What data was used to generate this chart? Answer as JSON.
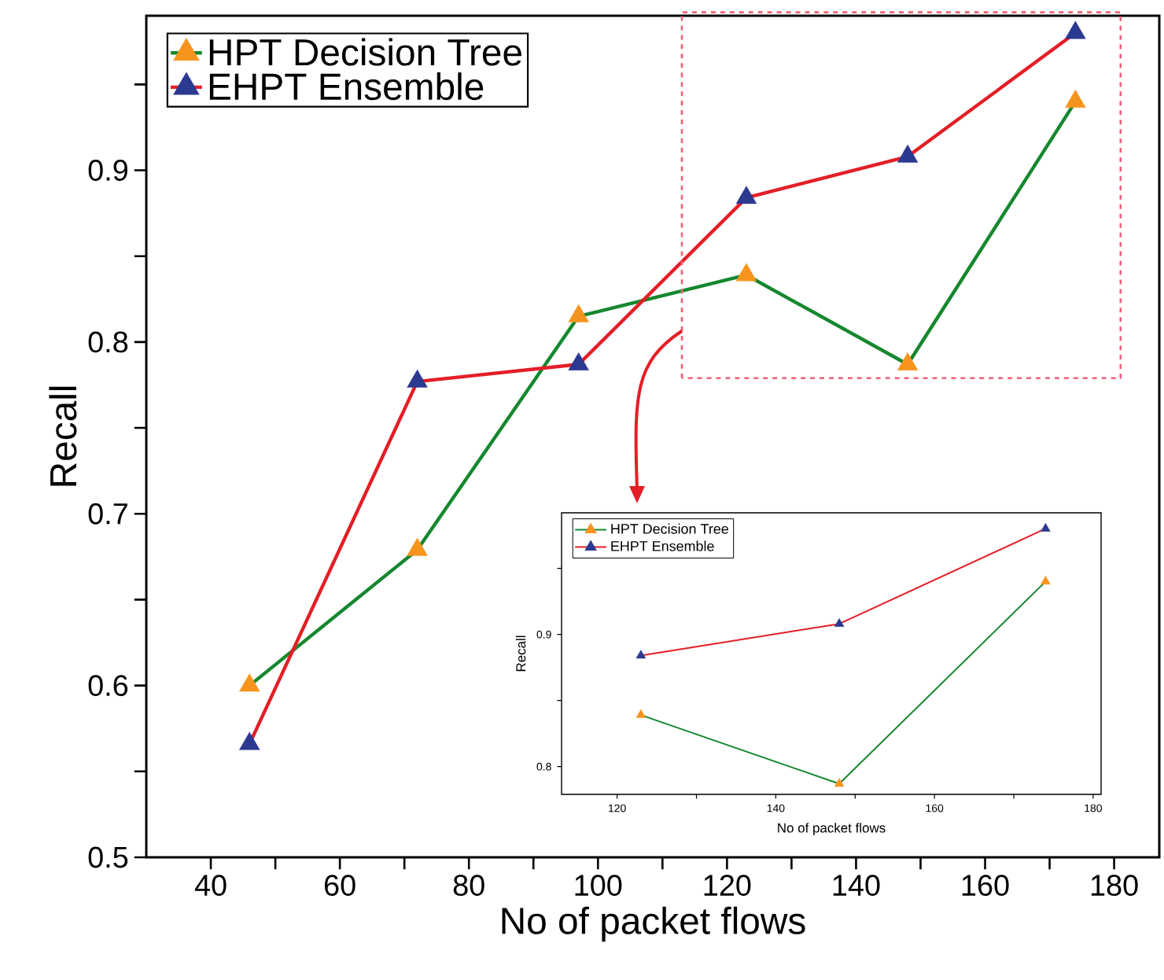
{
  "chart_data": [
    {
      "type": "line",
      "xlabel": "No of packet flows",
      "ylabel": "Recall",
      "x": [
        46,
        72,
        97,
        123,
        148,
        174
      ],
      "series": [
        {
          "name": "HPT Decision Tree",
          "color": "#15872e",
          "colors": [
            "#f7941e",
            "#f7941e",
            "#f7941e",
            "#f7941e",
            "#f7941e",
            "#f7941e"
          ],
          "values": [
            0.6,
            0.679,
            0.815,
            0.839,
            0.787,
            0.94
          ]
        },
        {
          "name": "EHPT Ensemble",
          "color": "#e41e26",
          "colors": [
            "#2b3990",
            "#2b3990",
            "#2b3990",
            "#2b3990",
            "#2b3990",
            "#2b3990"
          ],
          "values": [
            0.566,
            0.777,
            0.787,
            0.884,
            0.908,
            0.98
          ]
        }
      ],
      "xlim": [
        30,
        187
      ],
      "ylim": [
        0.5,
        0.99
      ],
      "xticks": [
        40,
        {
          "value": 50,
          "label": null
        },
        60,
        {
          "value": 70,
          "label": null
        },
        80,
        {
          "value": 90,
          "label": null
        },
        100,
        {
          "value": 110,
          "label": null
        },
        120,
        {
          "value": 130,
          "label": null
        },
        140,
        {
          "value": 150,
          "label": null
        },
        160,
        {
          "value": 170,
          "label": null
        },
        180
      ],
      "yticks": [
        0.5,
        {
          "value": 0.55,
          "label": null
        },
        0.6,
        {
          "value": 0.65,
          "label": null
        },
        0.7,
        {
          "value": 0.75,
          "label": null
        },
        0.8,
        {
          "value": 0.85,
          "label": null
        },
        0.9,
        {
          "value": 0.95,
          "label": null
        }
      ],
      "legend": "top left",
      "marker": "triangle",
      "line_style": "solid"
    },
    {
      "type": "line",
      "xlabel": "No of packet flows",
      "ylabel": "Recall",
      "x": [
        123,
        148,
        174
      ],
      "series": [
        {
          "name": "HPT Decision Tree",
          "color": "#15872e",
          "colors": [
            "#f7941e",
            "#f7941e",
            "#f7941e"
          ],
          "values": [
            0.839,
            0.787,
            0.94
          ]
        },
        {
          "name": "EHPT Ensemble",
          "color": "#e41e26",
          "colors": [
            "#2b3990",
            "#2b3990",
            "#2b3990"
          ],
          "values": [
            0.884,
            0.908,
            0.98
          ]
        }
      ],
      "xlim": [
        113,
        181
      ],
      "ylim": [
        0.779,
        0.992
      ],
      "xticks": [
        120,
        {
          "value": 130,
          "label": null
        },
        140,
        {
          "value": 150,
          "label": null
        },
        160,
        {
          "value": 170,
          "label": null
        },
        180
      ],
      "yticks": [
        0.8,
        {
          "value": 0.85,
          "label": null
        },
        0.9,
        {
          "value": 0.95,
          "label": null
        }
      ],
      "legend": "top left",
      "marker": "triangle",
      "line_style": "solid"
    }
  ]
}
